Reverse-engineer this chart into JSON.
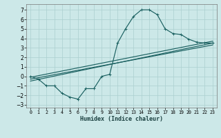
{
  "xlabel": "Humidex (Indice chaleur)",
  "bg_color": "#cce8e8",
  "grid_color": "#aacfcf",
  "line_color": "#1a6060",
  "xlim": [
    -0.5,
    23.5
  ],
  "ylim": [
    -3.3,
    7.6
  ],
  "xtick_labels": [
    "0",
    "1",
    "2",
    "3",
    "4",
    "5",
    "6",
    "7",
    "8",
    "9",
    "10",
    "11",
    "12",
    "13",
    "14",
    "15",
    "16",
    "17",
    "18",
    "19",
    "20",
    "21",
    "22",
    "23"
  ],
  "yticks": [
    -3,
    -2,
    -1,
    0,
    1,
    2,
    3,
    4,
    5,
    6,
    7
  ],
  "curve1_x": [
    0,
    1,
    2,
    3,
    4,
    5,
    6,
    7,
    8,
    9,
    10,
    11,
    12,
    13,
    14,
    15,
    16,
    17,
    18,
    19,
    20,
    21,
    22,
    23
  ],
  "curve1_y": [
    0.0,
    -0.3,
    -1.0,
    -1.0,
    -1.8,
    -2.2,
    -2.4,
    -1.3,
    -1.3,
    0.0,
    0.2,
    3.5,
    5.0,
    6.3,
    7.0,
    7.0,
    6.5,
    5.0,
    4.5,
    4.4,
    3.9,
    3.6,
    3.5,
    3.5
  ],
  "line2_x": [
    0,
    23
  ],
  "line2_y": [
    -0.5,
    3.5
  ],
  "line3_x": [
    0,
    23
  ],
  "line3_y": [
    -0.3,
    3.3
  ],
  "line4_x": [
    0,
    23
  ],
  "line4_y": [
    -0.1,
    3.7
  ]
}
